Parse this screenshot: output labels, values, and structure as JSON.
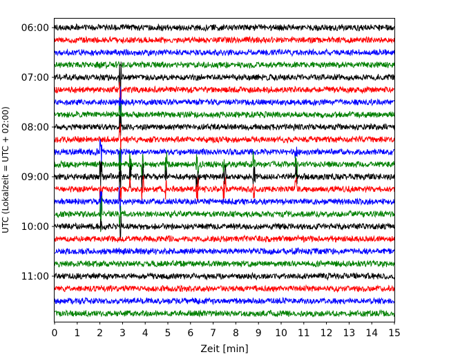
{
  "chart_data": {
    "type": "line",
    "subtype": "helicorder-seismogram",
    "xlabel": "Zeit  [min]",
    "ylabel": "UTC (Lokalzeit = UTC + 02:00)",
    "xlim": [
      0,
      15
    ],
    "x_ticks": [
      "0",
      "1",
      "2",
      "3",
      "4",
      "5",
      "6",
      "7",
      "8",
      "9",
      "10",
      "11",
      "12",
      "13",
      "14",
      "15"
    ],
    "y_tick_labels": [
      "06:00",
      "07:00",
      "08:00",
      "09:00",
      "10:00",
      "11:00"
    ],
    "trace_start_times": [
      "06:00",
      "06:15",
      "06:30",
      "06:45",
      "07:00",
      "07:15",
      "07:30",
      "07:45",
      "08:00",
      "08:15",
      "08:30",
      "08:45",
      "09:00",
      "09:15",
      "09:30",
      "09:45",
      "10:00",
      "10:15",
      "10:30",
      "10:45",
      "11:00",
      "11:15",
      "11:30",
      "11:45"
    ],
    "trace_colors": [
      "#000000",
      "#ff0000",
      "#0000ff",
      "#008000"
    ],
    "grid": false,
    "legend": "none",
    "events": [
      {
        "time_min": 2.05,
        "traces": [
          10,
          11,
          12,
          13,
          14,
          15,
          16
        ],
        "amplitude": 1.0
      },
      {
        "time_min": 2.9,
        "traces": [
          4,
          5,
          6,
          7,
          8,
          9,
          10,
          11,
          12,
          13,
          14,
          15,
          16
        ],
        "amplitude": 1.0
      },
      {
        "time_min": 3.35,
        "traces": [
          11,
          12,
          13
        ],
        "amplitude": 0.8
      },
      {
        "time_min": 3.9,
        "traces": [
          11,
          12,
          13
        ],
        "amplitude": 0.7
      },
      {
        "time_min": 4.9,
        "traces": [
          11,
          12,
          13
        ],
        "amplitude": 0.7
      },
      {
        "time_min": 6.3,
        "traces": [
          11,
          12,
          13
        ],
        "amplitude": 0.7
      },
      {
        "time_min": 7.5,
        "traces": [
          11,
          12,
          13
        ],
        "amplitude": 0.7
      },
      {
        "time_min": 8.8,
        "traces": [
          11,
          12,
          13
        ],
        "amplitude": 0.7
      },
      {
        "time_min": 10.65,
        "traces": [
          10,
          11,
          12,
          13
        ],
        "amplitude": 0.8
      }
    ]
  }
}
